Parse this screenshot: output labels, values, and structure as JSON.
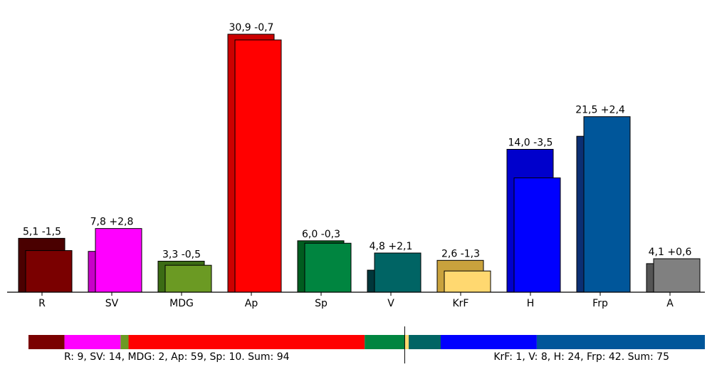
{
  "chart_data": {
    "type": "bar",
    "categories": [
      "R",
      "SV",
      "MDG",
      "Ap",
      "Sp",
      "V",
      "KrF",
      "H",
      "Frp",
      "A"
    ],
    "series": [
      {
        "values": [
          6.6,
          5.0,
          3.8,
          31.6,
          6.3,
          2.7,
          3.9,
          17.5,
          19.1,
          3.5
        ],
        "colors": [
          "#4a0000",
          "#c800c8",
          "#3b6b14",
          "#cc0000",
          "#005c1f",
          "#00363a",
          "#c9a23d",
          "#0000cc",
          "#0b2f73",
          "#555555"
        ]
      },
      {
        "values": [
          5.1,
          7.8,
          3.3,
          30.9,
          6.0,
          4.8,
          2.6,
          14.0,
          21.5,
          4.1
        ],
        "colors": [
          "#7a0000",
          "#ff00ff",
          "#6b9a23",
          "#ff0000",
          "#008540",
          "#006464",
          "#ffd870",
          "#0000ff",
          "#00569a",
          "#808080"
        ]
      }
    ],
    "labels": [
      "5,1 -1,5",
      "7,8 +2,8",
      "3,3 -0,5",
      "30,9 -0,7",
      "6,0 -0,3",
      "4,8 +2,1",
      "2,6 -1,3",
      "14,0 -3,5",
      "21,5 +2,4",
      "4,1 +0,6"
    ],
    "ylim": [
      0,
      33
    ],
    "grid": false,
    "seat_bar": {
      "total": 169,
      "segments": [
        {
          "party": "R",
          "seats": 9,
          "color": "#7a0000"
        },
        {
          "party": "SV",
          "seats": 14,
          "color": "#ff00ff"
        },
        {
          "party": "MDG",
          "seats": 2,
          "color": "#6b9a23"
        },
        {
          "party": "Ap",
          "seats": 59,
          "color": "#ff0000"
        },
        {
          "party": "Sp",
          "seats": 10,
          "color": "#008540"
        },
        {
          "party": "KrF",
          "seats": 1,
          "color": "#ffd870"
        },
        {
          "party": "V",
          "seats": 8,
          "color": "#006464"
        },
        {
          "party": "H",
          "seats": 24,
          "color": "#0000ff"
        },
        {
          "party": "Frp",
          "seats": 42,
          "color": "#00569a"
        }
      ],
      "left_text": "R: 9, SV: 14, MDG: 2, Ap: 59, Sp: 10. Sum: 94",
      "right_text": "KrF: 1, V: 8, H: 24, Frp: 42. Sum: 75"
    }
  }
}
